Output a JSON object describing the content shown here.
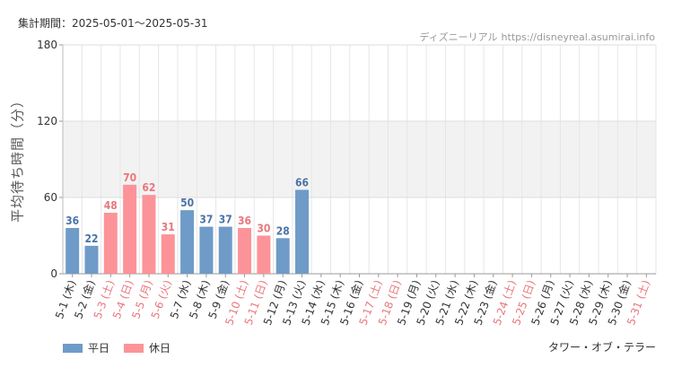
{
  "header": {
    "period_label": "集計期間：2025-05-01〜2025-05-31",
    "site_name": "ディズニーリアル",
    "site_url": "https://disneyreal.asumirai.info"
  },
  "attraction_name": "タワー・オブ・テラー",
  "colors": {
    "weekday": "#6f9bc8",
    "holiday": "#fc9398",
    "weekday_text": "#4a74a6",
    "holiday_text": "#e8777d",
    "band": "#f2f2f2",
    "grid": "#e6e6e6"
  },
  "chart_data": {
    "type": "bar",
    "ylabel": "平均待ち時間（分）",
    "xlabel": "",
    "ylim": [
      0,
      180
    ],
    "yticks": [
      0,
      60,
      120,
      180
    ],
    "shaded_band": [
      60,
      120
    ],
    "grid": true,
    "legend_position": "bottom-left",
    "legend": [
      {
        "key": "weekday",
        "label": "平日"
      },
      {
        "key": "holiday",
        "label": "休日"
      }
    ],
    "categories": [
      "5-1 (木)",
      "5-2 (金)",
      "5-3 (土)",
      "5-4 (日)",
      "5-5 (月)",
      "5-6 (火)",
      "5-7 (水)",
      "5-8 (木)",
      "5-9 (金)",
      "5-10 (土)",
      "5-11 (日)",
      "5-12 (月)",
      "5-13 (火)",
      "5-14 (水)",
      "5-15 (木)",
      "5-16 (金)",
      "5-17 (土)",
      "5-18 (日)",
      "5-19 (月)",
      "5-20 (火)",
      "5-21 (水)",
      "5-22 (木)",
      "5-23 (金)",
      "5-24 (土)",
      "5-25 (日)",
      "5-26 (月)",
      "5-27 (火)",
      "5-28 (水)",
      "5-29 (木)",
      "5-30 (金)",
      "5-31 (土)"
    ],
    "day_type": [
      "weekday",
      "weekday",
      "holiday",
      "holiday",
      "holiday",
      "holiday",
      "weekday",
      "weekday",
      "weekday",
      "holiday",
      "holiday",
      "weekday",
      "weekday",
      "weekday",
      "weekday",
      "weekday",
      "holiday",
      "holiday",
      "weekday",
      "weekday",
      "weekday",
      "weekday",
      "weekday",
      "holiday",
      "holiday",
      "weekday",
      "weekday",
      "weekday",
      "weekday",
      "weekday",
      "holiday"
    ],
    "values": [
      36,
      22,
      48,
      70,
      62,
      31,
      50,
      37,
      37,
      36,
      30,
      28,
      66,
      null,
      null,
      null,
      null,
      null,
      null,
      null,
      null,
      null,
      null,
      null,
      null,
      null,
      null,
      null,
      null,
      null,
      null
    ]
  }
}
